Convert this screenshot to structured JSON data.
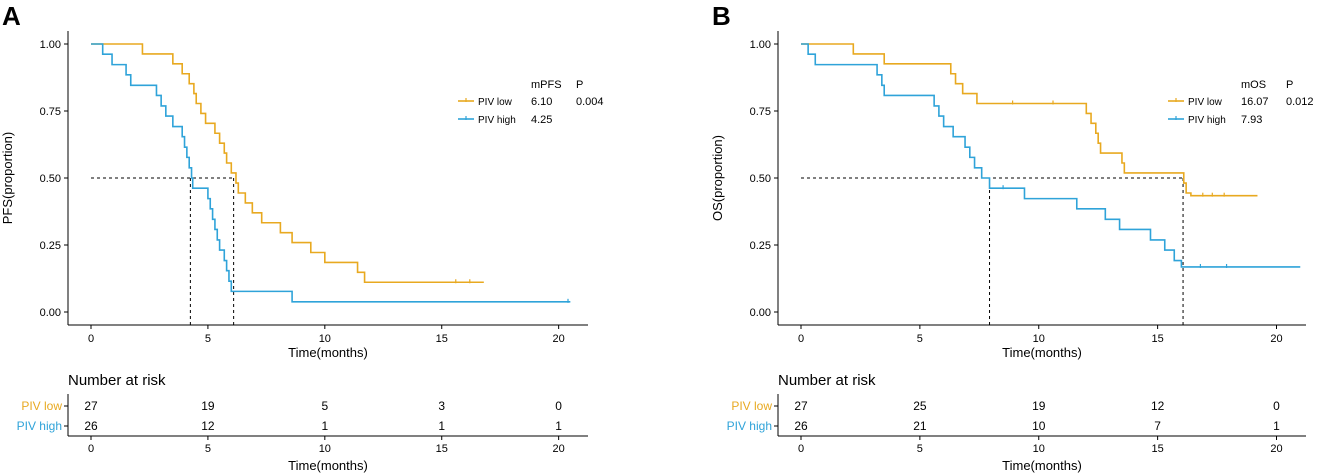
{
  "colors": {
    "low": "#E8A920",
    "high": "#2FA3D9",
    "axis": "#000000",
    "ref": "#000000"
  },
  "chart_data": [
    {
      "type": "line",
      "panel_label": "A",
      "title": "",
      "xlabel": "Time(months)",
      "ylabel": "PFS(proportion)",
      "xlim": [
        0,
        21
      ],
      "ylim": [
        0,
        1
      ],
      "xticks": [
        "0",
        "5",
        "10",
        "15",
        "20"
      ],
      "yticks": [
        "0.00",
        "0.25",
        "0.50",
        "0.75",
        "1.00"
      ],
      "legend": {
        "col_stat": "mPFS",
        "col_p": "P",
        "p_value": "0.004",
        "entries": [
          {
            "label": "PIV low",
            "median": "6.10"
          },
          {
            "label": "PIV high",
            "median": "4.25"
          }
        ]
      },
      "medians": [
        6.1,
        4.25
      ],
      "series": [
        {
          "name": "PIV low",
          "steps": [
            [
              0,
              1
            ],
            [
              2.2,
              0.963
            ],
            [
              3.5,
              0.926
            ],
            [
              3.9,
              0.889
            ],
            [
              4.2,
              0.852
            ],
            [
              4.4,
              0.815
            ],
            [
              4.5,
              0.778
            ],
            [
              4.7,
              0.741
            ],
            [
              4.9,
              0.704
            ],
            [
              5.3,
              0.667
            ],
            [
              5.5,
              0.63
            ],
            [
              5.7,
              0.593
            ],
            [
              5.8,
              0.556
            ],
            [
              6.0,
              0.519
            ],
            [
              6.2,
              0.481
            ],
            [
              6.3,
              0.444
            ],
            [
              6.6,
              0.407
            ],
            [
              6.9,
              0.37
            ],
            [
              7.3,
              0.333
            ],
            [
              8.1,
              0.296
            ],
            [
              8.6,
              0.259
            ],
            [
              9.4,
              0.222
            ],
            [
              10.0,
              0.185
            ],
            [
              11.4,
              0.148
            ],
            [
              11.7,
              0.111
            ]
          ],
          "end": 16.8,
          "censor": [
            15.6,
            16.2
          ]
        },
        {
          "name": "PIV high",
          "steps": [
            [
              0,
              1
            ],
            [
              0.5,
              0.962
            ],
            [
              0.9,
              0.923
            ],
            [
              1.5,
              0.885
            ],
            [
              1.7,
              0.846
            ],
            [
              2.8,
              0.808
            ],
            [
              3.0,
              0.769
            ],
            [
              3.2,
              0.731
            ],
            [
              3.5,
              0.692
            ],
            [
              3.9,
              0.654
            ],
            [
              4.0,
              0.615
            ],
            [
              4.1,
              0.577
            ],
            [
              4.2,
              0.538
            ],
            [
              4.3,
              0.5
            ],
            [
              4.35,
              0.462
            ],
            [
              5.0,
              0.423
            ],
            [
              5.1,
              0.385
            ],
            [
              5.2,
              0.346
            ],
            [
              5.3,
              0.308
            ],
            [
              5.4,
              0.269
            ],
            [
              5.5,
              0.231
            ],
            [
              5.7,
              0.192
            ],
            [
              5.8,
              0.154
            ],
            [
              5.9,
              0.115
            ],
            [
              6.0,
              0.077
            ],
            [
              8.6,
              0.038
            ]
          ],
          "end": 20.5,
          "censor": [
            20.4
          ]
        }
      ],
      "risk": {
        "title": "Number at risk",
        "xlabel": "Time(months)",
        "xticks": [
          "0",
          "5",
          "10",
          "15",
          "20"
        ],
        "rows": [
          {
            "label": "PIV low",
            "counts": [
              "27",
              "19",
              "5",
              "3",
              "0"
            ]
          },
          {
            "label": "PIV high",
            "counts": [
              "26",
              "12",
              "1",
              "1",
              "1"
            ]
          }
        ]
      }
    },
    {
      "type": "line",
      "panel_label": "B",
      "title": "",
      "xlabel": "Time(months)",
      "ylabel": "OS(proportion)",
      "xlim": [
        0,
        21
      ],
      "ylim": [
        0,
        1
      ],
      "xticks": [
        "0",
        "5",
        "10",
        "15",
        "20"
      ],
      "yticks": [
        "0.00",
        "0.25",
        "0.50",
        "0.75",
        "1.00"
      ],
      "legend": {
        "col_stat": "mOS",
        "col_p": "P",
        "p_value": "0.012",
        "entries": [
          {
            "label": "PIV low",
            "median": "16.07"
          },
          {
            "label": "PIV high",
            "median": "7.93"
          }
        ]
      },
      "medians": [
        16.07,
        7.93
      ],
      "series": [
        {
          "name": "PIV low",
          "steps": [
            [
              0,
              1
            ],
            [
              2.2,
              0.963
            ],
            [
              3.5,
              0.926
            ],
            [
              6.3,
              0.889
            ],
            [
              6.5,
              0.852
            ],
            [
              6.8,
              0.815
            ],
            [
              7.4,
              0.778
            ],
            [
              12.0,
              0.741
            ],
            [
              12.2,
              0.704
            ],
            [
              12.4,
              0.667
            ],
            [
              12.5,
              0.63
            ],
            [
              12.6,
              0.593
            ],
            [
              13.5,
              0.556
            ],
            [
              13.6,
              0.519
            ],
            [
              16.1,
              0.481
            ],
            [
              16.2,
              0.444
            ],
            [
              16.4,
              0.434
            ]
          ],
          "end": 19.2,
          "censor": [
            8.9,
            10.6,
            16.9,
            17.3,
            17.8
          ]
        },
        {
          "name": "PIV high",
          "steps": [
            [
              0,
              1
            ],
            [
              0.3,
              0.962
            ],
            [
              0.6,
              0.923
            ],
            [
              3.2,
              0.885
            ],
            [
              3.4,
              0.846
            ],
            [
              3.5,
              0.808
            ],
            [
              5.6,
              0.769
            ],
            [
              5.8,
              0.731
            ],
            [
              6.0,
              0.692
            ],
            [
              6.4,
              0.654
            ],
            [
              6.9,
              0.615
            ],
            [
              7.1,
              0.577
            ],
            [
              7.3,
              0.538
            ],
            [
              7.6,
              0.5
            ],
            [
              7.93,
              0.462
            ],
            [
              9.4,
              0.423
            ],
            [
              11.6,
              0.385
            ],
            [
              12.8,
              0.346
            ],
            [
              13.4,
              0.308
            ],
            [
              14.7,
              0.269
            ],
            [
              15.3,
              0.231
            ],
            [
              15.7,
              0.192
            ],
            [
              16.0,
              0.168
            ]
          ],
          "end": 21.0,
          "censor": [
            8.5,
            16.8,
            17.9
          ]
        }
      ],
      "risk": {
        "title": "Number at risk",
        "xlabel": "Time(months)",
        "xticks": [
          "0",
          "5",
          "10",
          "15",
          "20"
        ],
        "rows": [
          {
            "label": "PIV low",
            "counts": [
              "27",
              "25",
              "19",
              "12",
              "0"
            ]
          },
          {
            "label": "PIV high",
            "counts": [
              "26",
              "21",
              "10",
              "7",
              "1"
            ]
          }
        ]
      }
    }
  ]
}
